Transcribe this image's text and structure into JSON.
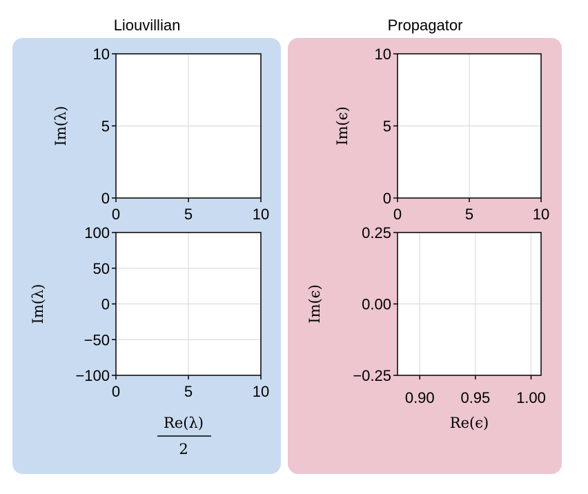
{
  "colors": {
    "left_panel": "#c9dbf0",
    "right_panel": "#edc6cf",
    "grid": "#dcdcdc",
    "axis": "#000000"
  },
  "chart_data": [
    {
      "type": "scatter",
      "group": "Liouvillian",
      "title": "Liouvillian",
      "xlabel": "",
      "ylabel": "Im(λ)",
      "xlim": [
        0,
        10
      ],
      "ylim": [
        0,
        10
      ],
      "xticks": [
        0,
        5,
        10
      ],
      "xtick_labels": [
        "0",
        "5",
        "10"
      ],
      "yticks": [
        0,
        5,
        10
      ],
      "ytick_labels": [
        "0",
        "5",
        "10"
      ],
      "grid": true,
      "points": []
    },
    {
      "type": "scatter",
      "group": "Liouvillian",
      "xlabel_num": "Re(λ)",
      "xlabel_den": "2",
      "ylabel": "Im(λ)",
      "xlim": [
        0,
        10
      ],
      "ylim": [
        -100,
        100
      ],
      "xticks": [
        0,
        5,
        10
      ],
      "xtick_labels": [
        "0",
        "5",
        "10"
      ],
      "yticks": [
        -100,
        -50,
        0,
        50,
        100
      ],
      "ytick_labels": [
        "−100",
        "−50",
        "0",
        "50",
        "100"
      ],
      "grid": true,
      "points": []
    },
    {
      "type": "scatter",
      "group": "Propagator",
      "title": "Propagator",
      "xlabel": "",
      "ylabel": "Im(ϵ)",
      "xlim": [
        0,
        10
      ],
      "ylim": [
        0,
        10
      ],
      "xticks": [
        0,
        5,
        10
      ],
      "xtick_labels": [
        "0",
        "5",
        "10"
      ],
      "yticks": [
        0,
        5,
        10
      ],
      "ytick_labels": [
        "0",
        "5",
        "10"
      ],
      "grid": true,
      "points": []
    },
    {
      "type": "scatter",
      "group": "Propagator",
      "xlabel": "Re(ϵ)",
      "ylabel": "Im(ϵ)",
      "xlim": [
        0.88,
        1.009
      ],
      "ylim": [
        -0.25,
        0.25
      ],
      "xticks": [
        0.9,
        0.95,
        1.0
      ],
      "xtick_labels": [
        "0.90",
        "0.95",
        "1.00"
      ],
      "yticks": [
        -0.25,
        0,
        0.25
      ],
      "ytick_labels": [
        "−0.25",
        "0.00",
        "0.25"
      ],
      "grid": true,
      "points": []
    }
  ]
}
